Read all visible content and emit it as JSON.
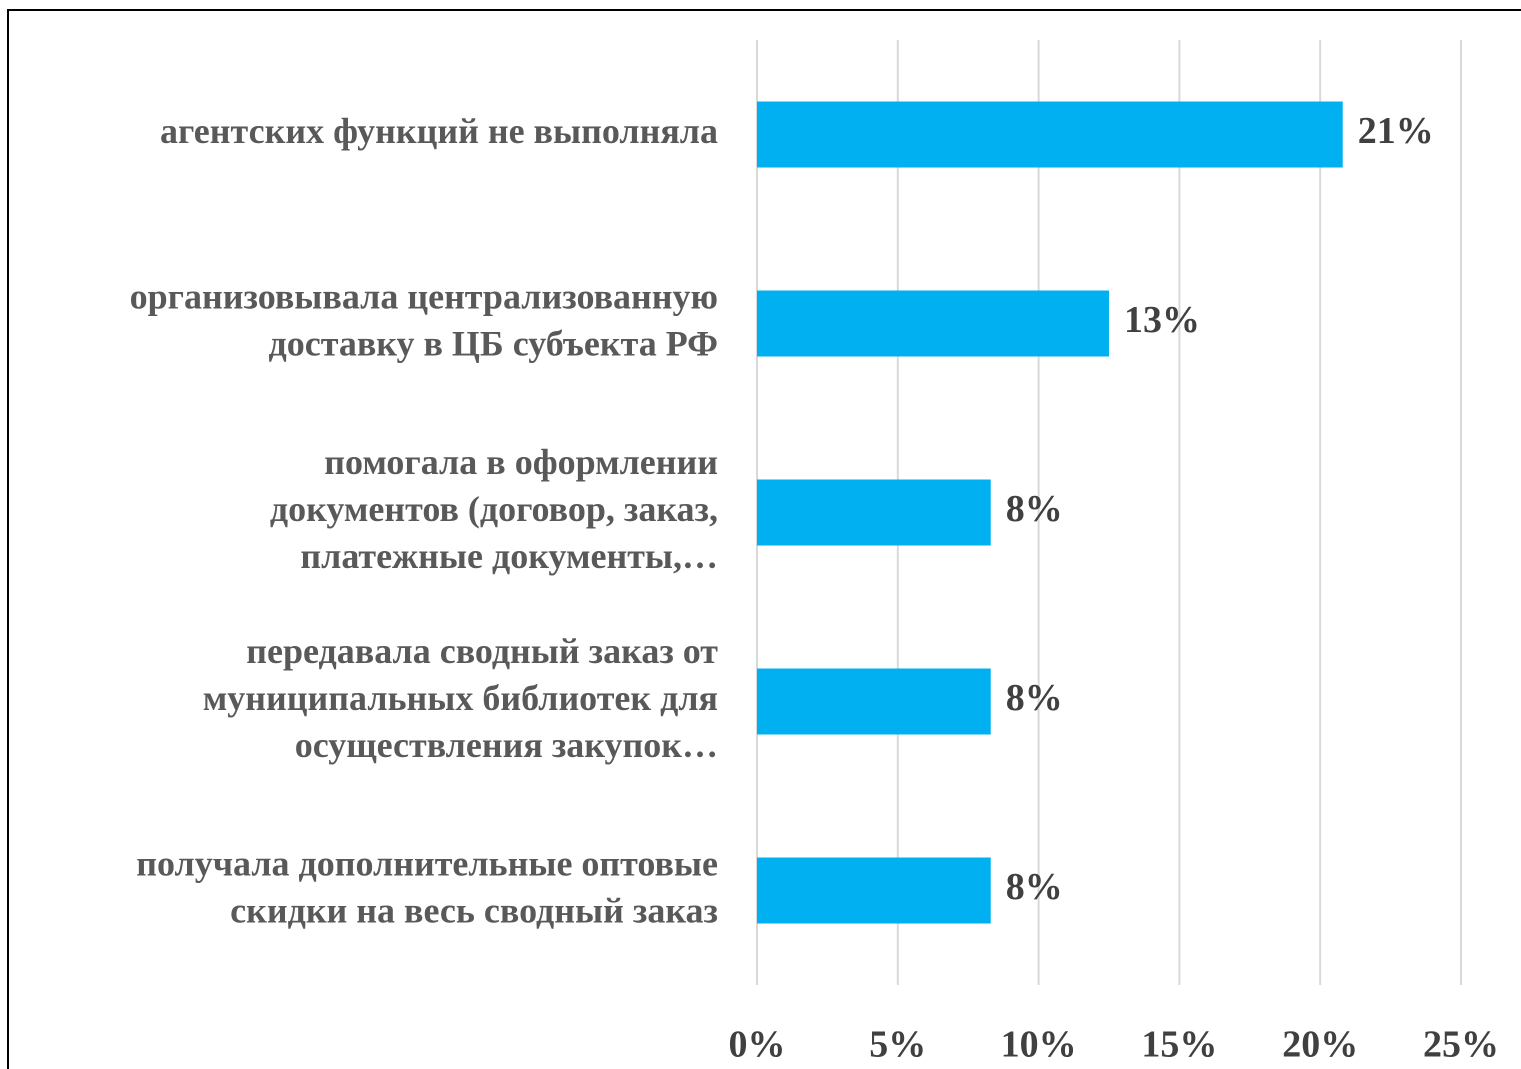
{
  "chart_data": {
    "type": "barh",
    "categories": [
      [
        "агентских функций не выполняла"
      ],
      [
        "организовывала централизованную",
        "доставку в ЦБ субъекта РФ"
      ],
      [
        "помогала в оформлении",
        "документов (договор, заказ,",
        "платежные документы,…"
      ],
      [
        "передавала сводный заказ от",
        "муниципальных библиотек для",
        "осуществления закупок…"
      ],
      [
        "получала дополнительные оптовые",
        "скидки на весь сводный заказ"
      ]
    ],
    "values": [
      20.8,
      12.5,
      8.3,
      8.3,
      8.3
    ],
    "value_labels": [
      "21%",
      "13%",
      "8%",
      "8%",
      "8%"
    ],
    "color": "#00b0f0",
    "xlim": [
      0,
      25
    ],
    "xticks": [
      {
        "value": 0,
        "label": "0%"
      },
      {
        "value": 5,
        "label": "5%"
      },
      {
        "value": 10,
        "label": "10%"
      },
      {
        "value": 15,
        "label": "15%"
      },
      {
        "value": 20,
        "label": "20%"
      },
      {
        "value": 25,
        "label": "25%"
      }
    ],
    "grid": true
  }
}
